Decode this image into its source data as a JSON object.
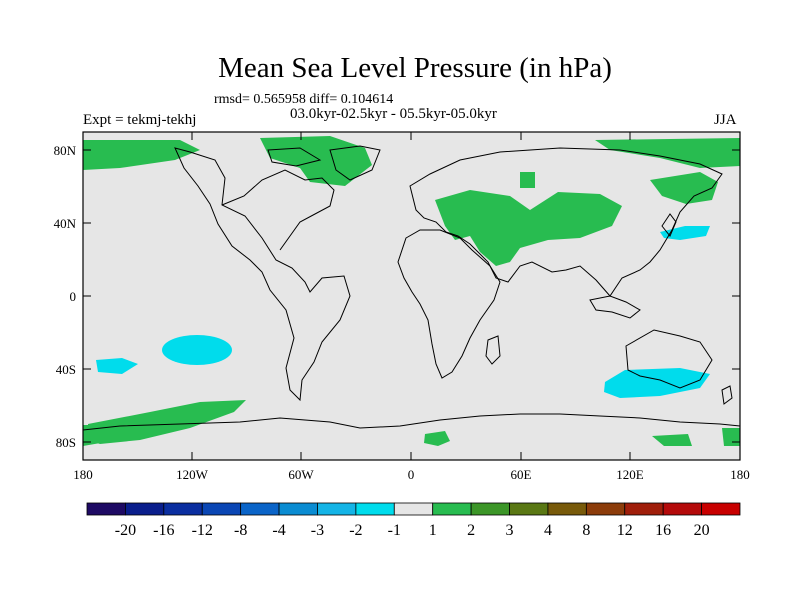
{
  "title": "Mean Sea Level Pressure (in hPa)",
  "stats_line": "rmsd= 0.565958 diff= 0.104614",
  "period_line": "03.0kyr-02.5kyr - 05.5kyr-05.0kyr",
  "experiment": "Expt = tekmj-tekhj",
  "season": "JJA",
  "lat_labels": [
    "80N",
    "40N",
    "0",
    "40S",
    "80S"
  ],
  "lon_labels": [
    "180",
    "120W",
    "60W",
    "0",
    "60E",
    "120E",
    "180"
  ],
  "colorbar": {
    "labels": [
      "-20",
      "-16",
      "-12",
      "-8",
      "-4",
      "-3",
      "-2",
      "-1",
      "1",
      "2",
      "3",
      "4",
      "8",
      "12",
      "16",
      "20"
    ],
    "colors": [
      "#1e0a64",
      "#0a1e8c",
      "#0a2ea0",
      "#0a46b4",
      "#0a64c8",
      "#0a8cd2",
      "#14b4e6",
      "#00dcec",
      "#e6e6e6",
      "#28bc50",
      "#3c9628",
      "#5a7814",
      "#785a0a",
      "#8c3c0a",
      "#a01e0a",
      "#b40a0a",
      "#c80000"
    ]
  },
  "colors": {
    "land_ocean_background": "#e6e6e6",
    "positive_anomaly": "#28bc50",
    "negative_anomaly": "#00dcec",
    "coastline": "#000000"
  }
}
